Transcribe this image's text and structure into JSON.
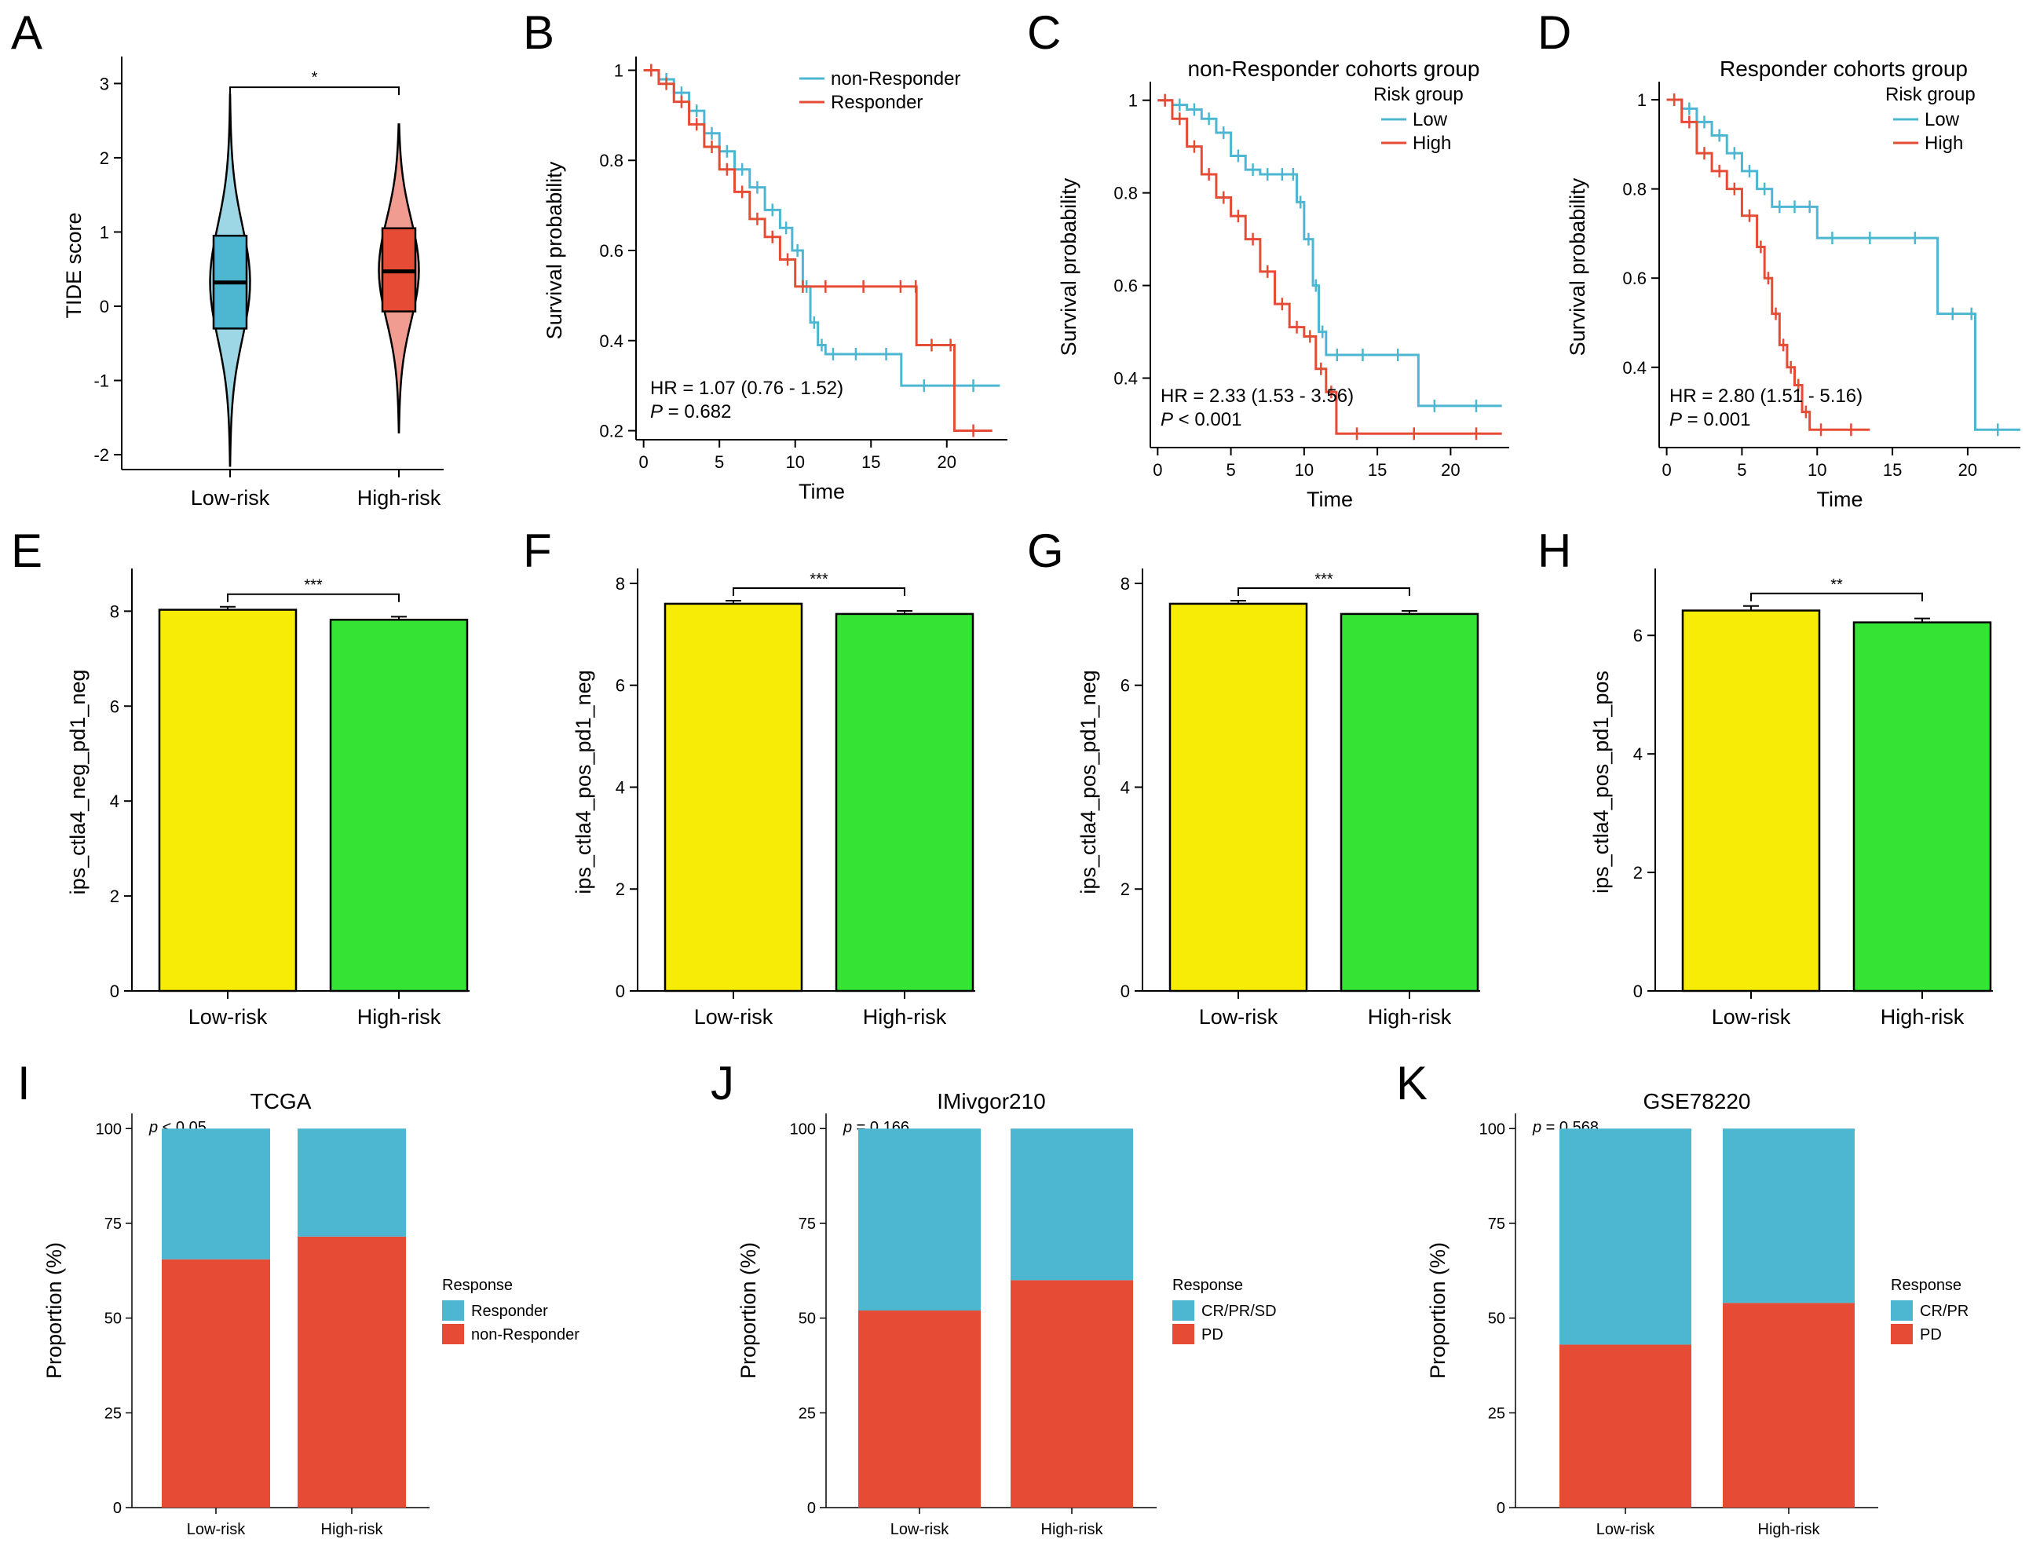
{
  "panel_labels": [
    "A",
    "B",
    "C",
    "D",
    "E",
    "F",
    "G",
    "H",
    "I",
    "J",
    "K"
  ],
  "chart_data": [
    {
      "id": "A",
      "type": "violin",
      "categories": [
        "Low-risk",
        "High-risk"
      ],
      "ylabel": "TIDE score",
      "ylim": [
        -2.2,
        3.3
      ],
      "yticks": [
        -2,
        -1,
        0,
        1,
        2,
        3
      ],
      "colors": [
        "#4db7d2",
        "#e64b35"
      ],
      "significance": "*",
      "violins": [
        {
          "name": "Low-risk",
          "min": -2.15,
          "q1": -0.3,
          "median": 0.32,
          "q3": 0.95,
          "max": 2.85
        },
        {
          "name": "High-risk",
          "min": -1.7,
          "q1": -0.07,
          "median": 0.47,
          "q3": 1.05,
          "max": 2.45
        }
      ]
    },
    {
      "id": "B",
      "type": "line",
      "subtype": "kaplan-meier",
      "title": "",
      "xlabel": "Time",
      "ylabel": "Survival probability",
      "xlim": [
        -0.5,
        24
      ],
      "ylim": [
        0.18,
        1.02
      ],
      "xticks": [
        0,
        5,
        10,
        15,
        20
      ],
      "yticks": [
        0.2,
        0.4,
        0.6,
        0.8,
        1.0
      ],
      "legend": {
        "title": "",
        "entries": [
          "non-Responder",
          "Responder"
        ]
      },
      "annotation": {
        "hr": "HR = 1.07 (0.76 -  1.52)",
        "p_label": "P",
        "p_value": " = 0.682"
      },
      "series": [
        {
          "name": "non-Responder",
          "color": "#4db7d2",
          "x": [
            0,
            1,
            2,
            3,
            4,
            5,
            6,
            7,
            8,
            9,
            9.8,
            10.5,
            11,
            11.5,
            12,
            13,
            15,
            17,
            20,
            23.5
          ],
          "y": [
            1.0,
            0.98,
            0.95,
            0.91,
            0.86,
            0.82,
            0.78,
            0.74,
            0.69,
            0.65,
            0.6,
            0.52,
            0.44,
            0.39,
            0.37,
            0.37,
            0.37,
            0.3,
            0.3,
            0.3
          ]
        },
        {
          "name": "Responder",
          "color": "#e64b35",
          "x": [
            0,
            1,
            2,
            3,
            4,
            5,
            6,
            7,
            8,
            9,
            10,
            11,
            13,
            16,
            17.9,
            18,
            20,
            20.5,
            23
          ],
          "y": [
            1.0,
            0.97,
            0.93,
            0.88,
            0.83,
            0.78,
            0.73,
            0.67,
            0.63,
            0.58,
            0.52,
            0.52,
            0.52,
            0.52,
            0.52,
            0.39,
            0.39,
            0.2,
            0.2
          ]
        }
      ]
    },
    {
      "id": "C",
      "type": "line",
      "subtype": "kaplan-meier",
      "title": "non-Responder cohorts group",
      "xlabel": "Time",
      "ylabel": "Survival probability",
      "xlim": [
        -0.5,
        24
      ],
      "ylim": [
        0.25,
        1.03
      ],
      "xticks": [
        0,
        5,
        10,
        15,
        20
      ],
      "yticks": [
        0.4,
        0.6,
        0.8,
        1.0
      ],
      "legend": {
        "title": "Risk group",
        "entries": [
          "Low",
          "High"
        ]
      },
      "annotation": {
        "hr": "HR = 2.33 (1.53 -  3.56)",
        "p_label": "P",
        "p_value": " < 0.001"
      },
      "series": [
        {
          "name": "Low",
          "color": "#4db7d2",
          "x": [
            0,
            1,
            2,
            3,
            4,
            5,
            6,
            7,
            8,
            9,
            9.5,
            10,
            10.6,
            11,
            11.5,
            13,
            15,
            17.8,
            20,
            23.5
          ],
          "y": [
            1.0,
            0.99,
            0.98,
            0.96,
            0.93,
            0.88,
            0.85,
            0.84,
            0.84,
            0.84,
            0.78,
            0.7,
            0.6,
            0.5,
            0.45,
            0.45,
            0.45,
            0.34,
            0.34,
            0.34
          ]
        },
        {
          "name": "High",
          "color": "#e64b35",
          "x": [
            0,
            1,
            2,
            3,
            4,
            5,
            6,
            7,
            8,
            9,
            10,
            10.8,
            11.5,
            12.2,
            15,
            20,
            23.5
          ],
          "y": [
            1.0,
            0.96,
            0.9,
            0.84,
            0.79,
            0.75,
            0.7,
            0.63,
            0.56,
            0.51,
            0.49,
            0.42,
            0.37,
            0.28,
            0.28,
            0.28,
            0.28
          ]
        }
      ]
    },
    {
      "id": "D",
      "type": "line",
      "subtype": "kaplan-meier",
      "title": "Responder cohorts group",
      "xlabel": "Time",
      "ylabel": "Survival probability",
      "xlim": [
        -0.5,
        23.5
      ],
      "ylim": [
        0.22,
        1.03
      ],
      "xticks": [
        0,
        5,
        10,
        15,
        20
      ],
      "yticks": [
        0.4,
        0.6,
        0.8,
        1.0
      ],
      "legend": {
        "title": "Risk group",
        "entries": [
          "Low",
          "High"
        ]
      },
      "annotation": {
        "hr": "HR = 2.80 (1.51 -  5.16)",
        "p_label": "P",
        "p_value": " = 0.001"
      },
      "series": [
        {
          "name": "Low",
          "color": "#4db7d2",
          "x": [
            0,
            1,
            2,
            3,
            4,
            5,
            6,
            7,
            8,
            9,
            10,
            12,
            15,
            18,
            20,
            20.5,
            23.5
          ],
          "y": [
            1.0,
            0.98,
            0.95,
            0.92,
            0.88,
            0.84,
            0.8,
            0.76,
            0.76,
            0.76,
            0.69,
            0.69,
            0.69,
            0.52,
            0.52,
            0.26,
            0.26
          ]
        },
        {
          "name": "High",
          "color": "#e64b35",
          "x": [
            0,
            1,
            2,
            3,
            4,
            5,
            6,
            6.5,
            7,
            7.5,
            8,
            8.5,
            9,
            9.5,
            11,
            13.5
          ],
          "y": [
            1.0,
            0.95,
            0.88,
            0.84,
            0.8,
            0.74,
            0.67,
            0.6,
            0.52,
            0.45,
            0.4,
            0.36,
            0.3,
            0.26,
            0.26,
            0.26
          ]
        }
      ]
    },
    {
      "id": "E",
      "type": "bar",
      "categories": [
        "Low-risk",
        "High-risk"
      ],
      "values": [
        8.03,
        7.82
      ],
      "errors": [
        0.03,
        0.03
      ],
      "ylabel": "ips_ctla4_neg_pd1_neg",
      "ylim": [
        0,
        8.8
      ],
      "yticks": [
        0,
        2,
        4,
        6,
        8
      ],
      "colors": [
        "#f7ec05",
        "#34e334"
      ],
      "significance": "***"
    },
    {
      "id": "F",
      "type": "bar",
      "categories": [
        "Low-risk",
        "High-risk"
      ],
      "values": [
        7.6,
        7.4
      ],
      "errors": [
        0.03,
        0.03
      ],
      "ylabel": "ips_ctla4_pos_pd1_neg",
      "ylim": [
        0,
        8.2
      ],
      "yticks": [
        0,
        2,
        4,
        6,
        8
      ],
      "colors": [
        "#f7ec05",
        "#34e334"
      ],
      "significance": "***"
    },
    {
      "id": "G",
      "type": "bar",
      "categories": [
        "Low-risk",
        "High-risk"
      ],
      "values": [
        7.6,
        7.4
      ],
      "errors": [
        0.03,
        0.03
      ],
      "ylabel": "ips_ctla4_pos_pd1_neg",
      "ylim": [
        0,
        8.2
      ],
      "yticks": [
        0,
        2,
        4,
        6,
        8
      ],
      "colors": [
        "#f7ec05",
        "#34e334"
      ],
      "significance": "***"
    },
    {
      "id": "H",
      "type": "bar",
      "categories": [
        "Low-risk",
        "High-risk"
      ],
      "values": [
        6.42,
        6.22
      ],
      "errors": [
        0.05,
        0.04
      ],
      "ylabel": "ips_ctla4_pos_pd1_pos",
      "ylim": [
        0,
        7.05
      ],
      "yticks": [
        0,
        2,
        4,
        6
      ],
      "colors": [
        "#f7ec05",
        "#34e334"
      ],
      "significance": "**"
    },
    {
      "id": "I",
      "type": "bar",
      "subtype": "stacked-percent",
      "title": "TCGA",
      "p_label": "p",
      "p_value": " < 0.05",
      "categories": [
        "Low-risk",
        "High-risk"
      ],
      "ylabel": "Proportion (%)",
      "ylim": [
        0,
        104
      ],
      "yticks": [
        0,
        25,
        50,
        75,
        100
      ],
      "legend": {
        "title": "Response",
        "entries": [
          "Responder",
          "non-Responder"
        ]
      },
      "series": [
        {
          "name": "non-Responder",
          "color": "#e64b35",
          "values": [
            65.5,
            71.5
          ]
        },
        {
          "name": "Responder",
          "color": "#4db7d2",
          "values": [
            34.5,
            28.5
          ]
        }
      ]
    },
    {
      "id": "J",
      "type": "bar",
      "subtype": "stacked-percent",
      "title": "IMivgor210",
      "p_label": "p",
      "p_value": " = 0.166",
      "categories": [
        "Low-risk",
        "High-risk"
      ],
      "ylabel": "Proportion (%)",
      "ylim": [
        0,
        104
      ],
      "yticks": [
        0,
        25,
        50,
        75,
        100
      ],
      "legend": {
        "title": "Response",
        "entries": [
          "CR/PR/SD",
          "PD"
        ]
      },
      "series": [
        {
          "name": "PD",
          "color": "#e64b35",
          "values": [
            52,
            60
          ]
        },
        {
          "name": "CR/PR/SD",
          "color": "#4db7d2",
          "values": [
            48,
            40
          ]
        }
      ]
    },
    {
      "id": "K",
      "type": "bar",
      "subtype": "stacked-percent",
      "title": "GSE78220",
      "p_label": "p",
      "p_value": " = 0.568",
      "categories": [
        "Low-risk",
        "High-risk"
      ],
      "ylabel": "Proportion (%)",
      "ylim": [
        0,
        104
      ],
      "yticks": [
        0,
        25,
        50,
        75,
        100
      ],
      "legend": {
        "title": "Response",
        "entries": [
          "CR/PR",
          "PD"
        ]
      },
      "series": [
        {
          "name": "PD",
          "color": "#e64b35",
          "values": [
            43,
            54
          ]
        },
        {
          "name": "CR/PR",
          "color": "#4db7d2",
          "values": [
            57,
            46
          ]
        }
      ]
    }
  ]
}
